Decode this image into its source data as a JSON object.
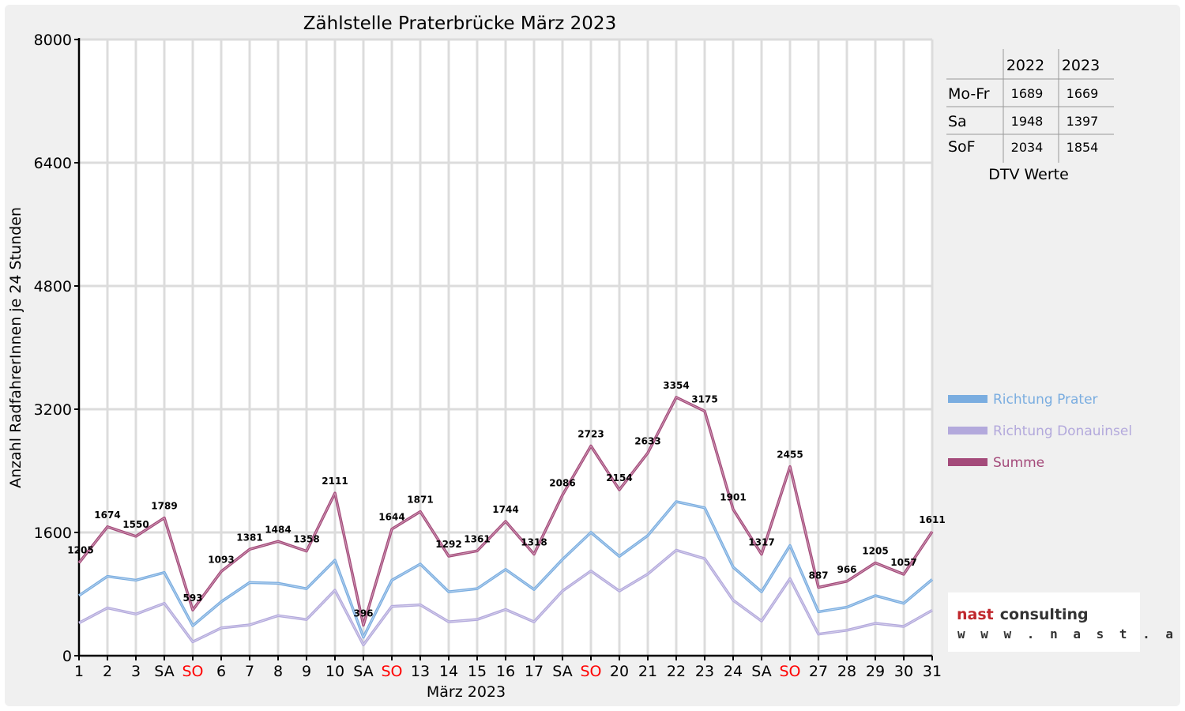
{
  "chart_data": {
    "type": "line",
    "title": "Zählstelle Praterbrücke März 2023",
    "xlabel": "März 2023",
    "ylabel": "Anzahl RadfahrerInnen je 24 Stunden",
    "ylim": [
      0,
      8000
    ],
    "yticks": [
      "0",
      "1600",
      "3200",
      "4800",
      "6400",
      "8000"
    ],
    "grid": true,
    "legend_position": "right",
    "categories": [
      "1",
      "2",
      "3",
      "SA",
      "SO",
      "6",
      "7",
      "8",
      "9",
      "10",
      "SA",
      "SO",
      "13",
      "14",
      "15",
      "16",
      "17",
      "SA",
      "SO",
      "20",
      "21",
      "22",
      "23",
      "24",
      "SA",
      "SO",
      "27",
      "28",
      "29",
      "30",
      "31"
    ],
    "category_colors": [
      "#000000",
      "#000000",
      "#000000",
      "#000000",
      "#ff0000",
      "#000000",
      "#000000",
      "#000000",
      "#000000",
      "#000000",
      "#000000",
      "#ff0000",
      "#000000",
      "#000000",
      "#000000",
      "#000000",
      "#000000",
      "#000000",
      "#ff0000",
      "#000000",
      "#000000",
      "#000000",
      "#000000",
      "#000000",
      "#000000",
      "#ff0000",
      "#000000",
      "#000000",
      "#000000",
      "#000000",
      "#000000"
    ],
    "series": [
      {
        "name": "Richtung Prater",
        "color": "#7aade0",
        "values": [
          780,
          1030,
          980,
          1080,
          390,
          700,
          950,
          940,
          870,
          1240,
          240,
          980,
          1190,
          830,
          870,
          1120,
          860,
          1250,
          1600,
          1290,
          1560,
          2000,
          1920,
          1150,
          830,
          1430,
          570,
          630,
          780,
          680,
          990
        ]
      },
      {
        "name": "Richtung Donauinsel",
        "color": "#b3a9dc",
        "values": [
          425,
          620,
          540,
          680,
          180,
          360,
          400,
          520,
          470,
          850,
          140,
          640,
          660,
          440,
          470,
          600,
          440,
          840,
          1100,
          840,
          1060,
          1370,
          1260,
          720,
          450,
          1000,
          280,
          330,
          420,
          380,
          590
        ]
      },
      {
        "name": "Summe",
        "color": "#a44a7a",
        "values": [
          1205,
          1674,
          1550,
          1789,
          593,
          1093,
          1381,
          1484,
          1358,
          2111,
          396,
          1644,
          1871,
          1292,
          1361,
          1744,
          1318,
          2086,
          2723,
          2154,
          2633,
          3354,
          3175,
          1901,
          1317,
          2455,
          887,
          966,
          1205,
          1057,
          1611
        ]
      }
    ]
  },
  "dtv_table": {
    "headers": [
      "",
      "2022",
      "2023"
    ],
    "rows": [
      {
        "label": "Mo-Fr",
        "v2022": "1689",
        "v2023": "1669"
      },
      {
        "label": "Sa",
        "v2022": "1948",
        "v2023": "1397"
      },
      {
        "label": "SoF",
        "v2022": "2034",
        "v2023": "1854"
      }
    ],
    "caption": "DTV Werte"
  },
  "logo": {
    "brand_a": "nast",
    "brand_b": "consulting",
    "url": "w w w . n a s t . a t",
    "color_a": "#c0282d",
    "color_b": "#333333"
  }
}
